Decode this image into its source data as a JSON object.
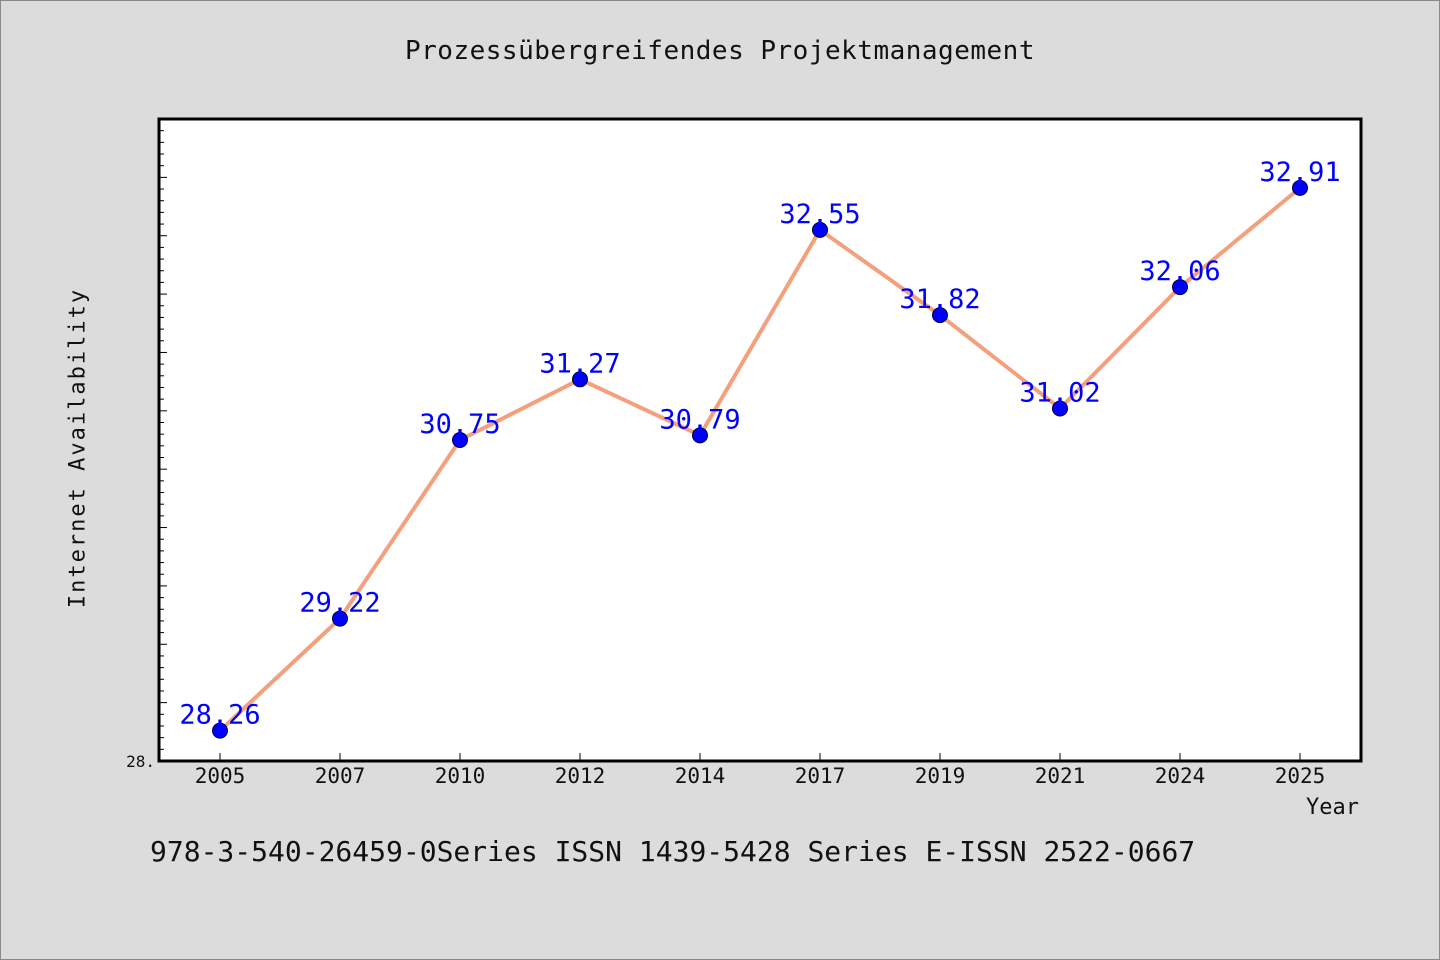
{
  "chart_data": {
    "type": "line",
    "title": "Prozessübergreifendes Projektmanagement",
    "xlabel": "Year",
    "ylabel": "Internet Availability",
    "categories": [
      "2005",
      "2007",
      "2010",
      "2012",
      "2014",
      "2017",
      "2019",
      "2021",
      "2024",
      "2025"
    ],
    "series": [
      {
        "values": [
          28.26,
          29.22,
          30.75,
          31.27,
          30.79,
          32.55,
          31.82,
          31.02,
          32.06,
          32.91
        ],
        "value_labels": [
          "28.26",
          "29.22",
          "30.75",
          "31.27",
          "30.79",
          "32.55",
          "31.82",
          "31.02",
          "32.06",
          "32.91"
        ]
      }
    ],
    "y_tick_label": "28.",
    "ylim": [
      28.0,
      33.5
    ],
    "grid": false,
    "legend": "none",
    "colors": {
      "line": "#f4a07c",
      "marker": "#0000ff",
      "value_label": "#0000ff",
      "plot_background": "#ffffff",
      "figure_background": "#dcdcdc"
    }
  },
  "footer": {
    "text": "978-3-540-26459-0Series ISSN 1439-5428 Series E-ISSN 2522-0667"
  }
}
